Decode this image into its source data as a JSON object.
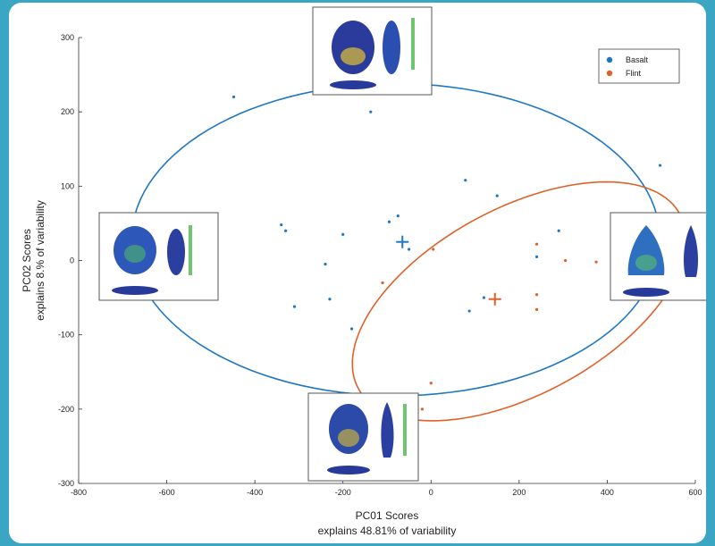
{
  "chart_data": {
    "type": "scatter",
    "xlabel": "PC01 Scores",
    "xlabel_sub": "explains 48.81% of variability",
    "ylabel": "PC02 Scores",
    "ylabel_sub": "explains 8.% of variability",
    "xlim": [
      -800,
      600
    ],
    "ylim": [
      -300,
      300
    ],
    "xticks": [
      -800,
      -600,
      -400,
      -200,
      0,
      200,
      400,
      600
    ],
    "yticks": [
      -300,
      -200,
      -100,
      0,
      100,
      200,
      300
    ],
    "legend": {
      "position": "top-right"
    },
    "series": [
      {
        "name": "Basalt",
        "color": "#1f77c4",
        "mean": [
          -65,
          25
        ],
        "points": [
          [
            -448,
            220
          ],
          [
            -137,
            200
          ],
          [
            78,
            108
          ],
          [
            150,
            87
          ],
          [
            -75,
            60
          ],
          [
            -95,
            52
          ],
          [
            -340,
            48
          ],
          [
            -330,
            40
          ],
          [
            -200,
            35
          ],
          [
            -50,
            15
          ],
          [
            -240,
            -5
          ],
          [
            -310,
            -62
          ],
          [
            -230,
            -52
          ],
          [
            -180,
            -92
          ],
          [
            87,
            -68
          ],
          [
            120,
            -50
          ],
          [
            240,
            5
          ],
          [
            290,
            40
          ],
          [
            520,
            128
          ]
        ],
        "ellipse": {
          "cx": -80,
          "cy": 28,
          "rx": 600,
          "ry": 210,
          "angle": 0
        }
      },
      {
        "name": "Flint",
        "color": "#e0602a",
        "mean": [
          145,
          -52
        ],
        "points": [
          [
            5,
            15
          ],
          [
            -110,
            -30
          ],
          [
            240,
            22
          ],
          [
            305,
            0
          ],
          [
            375,
            -2
          ],
          [
            240,
            -46
          ],
          [
            240,
            -66
          ],
          [
            -20,
            -200
          ],
          [
            0,
            -165
          ]
        ],
        "ellipse": {
          "cx": 200,
          "cy": -55,
          "rx": 430,
          "ry": 138,
          "angle": 30
        }
      }
    ]
  }
}
